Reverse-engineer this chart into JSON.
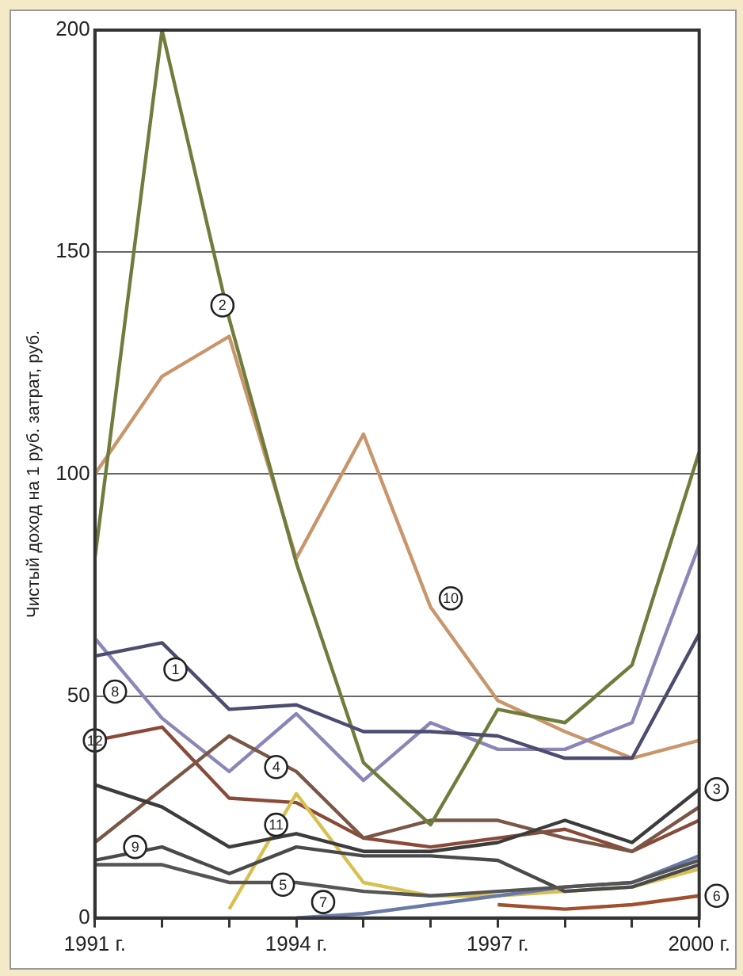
{
  "chart_data": {
    "type": "line",
    "ylabel": "Чистый доход на 1 руб. затрат, руб.",
    "x": [
      1991,
      1992,
      1993,
      1994,
      1995,
      1996,
      1997,
      1998,
      1999,
      2000
    ],
    "xlim": [
      1991,
      2000
    ],
    "xticks": [
      {
        "value": 1991,
        "label": "1991 г."
      },
      {
        "value": 1992,
        "label": null
      },
      {
        "value": 1993,
        "label": null
      },
      {
        "value": 1994,
        "label": "1994 г."
      },
      {
        "value": 1995,
        "label": null
      },
      {
        "value": 1996,
        "label": null
      },
      {
        "value": 1997,
        "label": "1997 г."
      },
      {
        "value": 1998,
        "label": null
      },
      {
        "value": 1999,
        "label": null
      },
      {
        "value": 2000,
        "label": "2000 г."
      }
    ],
    "ylim": [
      0,
      200
    ],
    "yticks": [
      0,
      50,
      100,
      150,
      200
    ],
    "grid": "y",
    "legend": false,
    "marker": "none",
    "line_style": "solid",
    "series": [
      {
        "color": "#4c4c70",
        "values": [
          59,
          62,
          47,
          48,
          42,
          42,
          41,
          36,
          36,
          64
        ]
      },
      {
        "color": "#6f7c3c",
        "values": [
          81,
          200,
          135,
          80,
          35,
          21,
          47,
          44,
          57,
          105
        ]
      },
      {
        "color": "#3c3c3c",
        "values": [
          30,
          25,
          16,
          19,
          15,
          15,
          17,
          22,
          17,
          29
        ]
      },
      {
        "color": "#7a5646",
        "values": [
          17,
          29,
          41,
          33,
          18,
          22,
          22,
          18,
          15,
          25
        ]
      },
      {
        "color": "#555555",
        "values": [
          12,
          12,
          8,
          8,
          6,
          5,
          6,
          7,
          8,
          13
        ]
      },
      {
        "color": "#a0502e",
        "values": [
          null,
          null,
          null,
          null,
          null,
          null,
          3,
          2,
          3,
          5
        ]
      },
      {
        "color": "#6a7aa8",
        "values": [
          null,
          null,
          null,
          0,
          1,
          3,
          5,
          7,
          8,
          14
        ]
      },
      {
        "color": "#8a86b8",
        "values": [
          63,
          45,
          33,
          46,
          31,
          44,
          38,
          38,
          44,
          84
        ]
      },
      {
        "color": "#4a4a4a",
        "values": [
          13,
          16,
          10,
          16,
          14,
          14,
          13,
          6,
          7,
          12
        ]
      },
      {
        "color": "#c9956a",
        "values": [
          100,
          122,
          131,
          81,
          109,
          70,
          49,
          42,
          36,
          40
        ]
      },
      {
        "color": "#d8c050",
        "values": [
          null,
          null,
          2,
          28,
          8,
          5,
          5,
          6,
          7,
          11
        ]
      },
      {
        "color": "#8a4a3a",
        "values": [
          40,
          43,
          27,
          26,
          18,
          16,
          18,
          20,
          15,
          22
        ]
      }
    ],
    "annotations": [
      {
        "text": "1",
        "x": 1992.2,
        "y": 56
      },
      {
        "text": "2",
        "x": 1992.9,
        "y": 138
      },
      {
        "text": "3",
        "x": 2000,
        "y": 29
      },
      {
        "text": "4",
        "x": 1993.7,
        "y": 34
      },
      {
        "text": "5",
        "x": 1993.8,
        "y": 7.5
      },
      {
        "text": "6",
        "x": 2000,
        "y": 5
      },
      {
        "text": "7",
        "x": 1994.4,
        "y": 3.6
      },
      {
        "text": "8",
        "x": 1991.3,
        "y": 51
      },
      {
        "text": "9",
        "x": 1991.6,
        "y": 16
      },
      {
        "text": "10",
        "x": 1996.3,
        "y": 72
      },
      {
        "text": "11",
        "x": 1993.7,
        "y": 21
      },
      {
        "text": "12",
        "x": 1991,
        "y": 40
      }
    ]
  }
}
